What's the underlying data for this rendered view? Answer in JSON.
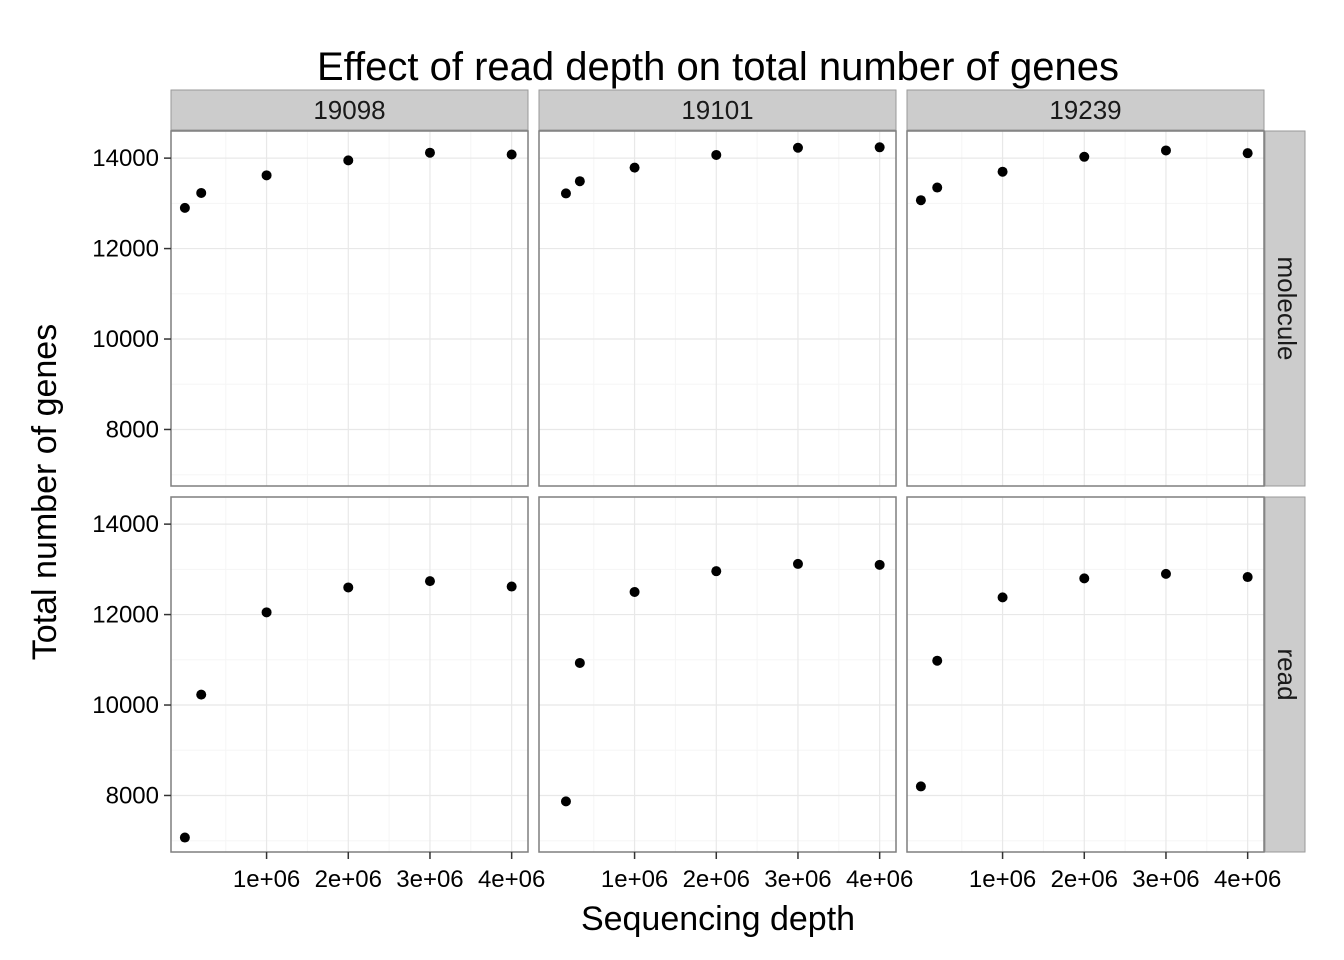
{
  "chart_data": {
    "type": "scatter",
    "title": "Effect of read depth on total number of genes",
    "xlabel": "Sequencing depth",
    "ylabel": "Total number of genes",
    "x_ticks": [
      1000000,
      2000000,
      3000000,
      4000000
    ],
    "x_tick_labels": [
      "1e+06",
      "2e+06",
      "3e+06",
      "4e+06"
    ],
    "xlim": [
      -170000,
      4200000
    ],
    "y_ticks": [
      8000,
      10000,
      12000,
      14000
    ],
    "y_tick_labels": [
      "8000",
      "10000",
      "12000",
      "14000"
    ],
    "ylim": [
      6750,
      14600
    ],
    "grid": true,
    "columns": [
      "19098",
      "19101",
      "19239"
    ],
    "rows": [
      "molecule",
      "read"
    ],
    "panels": [
      {
        "column": "19098",
        "row": "molecule",
        "x": [
          0,
          200000,
          1000000,
          2000000,
          3000000,
          4000000
        ],
        "y": [
          12900,
          13230,
          13620,
          13950,
          14120,
          14080
        ]
      },
      {
        "column": "19101",
        "row": "molecule",
        "x": [
          160000,
          330000,
          1000000,
          2000000,
          3000000,
          4000000
        ],
        "y": [
          13220,
          13490,
          13790,
          14070,
          14230,
          14240
        ]
      },
      {
        "column": "19239",
        "row": "molecule",
        "x": [
          0,
          200000,
          1000000,
          2000000,
          3000000,
          4000000
        ],
        "y": [
          13070,
          13350,
          13700,
          14030,
          14170,
          14110
        ]
      },
      {
        "column": "19098",
        "row": "read",
        "x": [
          0,
          200000,
          1000000,
          2000000,
          3000000,
          4000000
        ],
        "y": [
          7070,
          10230,
          12050,
          12600,
          12740,
          12620
        ]
      },
      {
        "column": "19101",
        "row": "read",
        "x": [
          160000,
          330000,
          1000000,
          2000000,
          3000000,
          4000000
        ],
        "y": [
          7870,
          10930,
          12500,
          12960,
          13120,
          13100
        ]
      },
      {
        "column": "19239",
        "row": "read",
        "x": [
          0,
          200000,
          1000000,
          2000000,
          3000000,
          4000000
        ],
        "y": [
          8200,
          10980,
          12380,
          12800,
          12900,
          12830
        ]
      }
    ]
  }
}
